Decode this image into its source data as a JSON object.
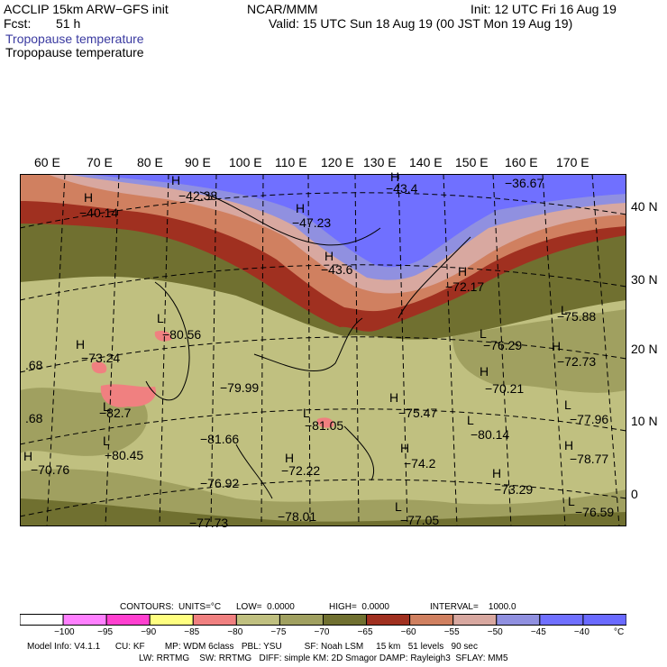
{
  "header": {
    "model": "ACCLIP 15km ARW−GFS init",
    "org": "NCAR/MMM",
    "init": "Init: 12 UTC Fri 16 Aug 19",
    "fcst_label": "Fcst:",
    "fcst_value": "51 h",
    "valid": "Valid: 15 UTC Sun 18 Aug 19 (00 JST Mon 19 Aug 19)",
    "field1": "Tropopause temperature",
    "field2": "Tropopause temperature"
  },
  "lon_labels": [
    "60 E",
    "70 E",
    "80 E",
    "90 E",
    "100 E",
    "110 E",
    "120 E",
    "130 E",
    "140 E",
    "150 E",
    "160 E",
    "170 E"
  ],
  "lat_labels": [
    "40 N",
    "30 N",
    "20 N",
    "10 N",
    "0"
  ],
  "map_labels": [
    {
      "text": "H"
    },
    {
      "text": "−40.14"
    },
    {
      "text": "H"
    },
    {
      "text": "−42.38"
    },
    {
      "text": "H"
    },
    {
      "text": "−47.23"
    },
    {
      "text": "H"
    },
    {
      "text": "−43.4"
    },
    {
      "text": "−36.67"
    },
    {
      "text": "H"
    },
    {
      "text": "−43.6"
    },
    {
      "text": "H"
    },
    {
      "text": "−72.17"
    },
    {
      "text": "L"
    },
    {
      "text": "−75.88"
    },
    {
      "text": "L"
    },
    {
      "text": "−80.56"
    },
    {
      "text": "H"
    },
    {
      "text": "−73.24"
    },
    {
      "text": "L"
    },
    {
      "text": "−76.29"
    },
    {
      "text": "H"
    },
    {
      "text": "−72.73"
    },
    {
      "text": "H"
    },
    {
      "text": "−70.21"
    },
    {
      "text": "−79.99"
    },
    {
      "text": "L"
    },
    {
      "text": "−82.7"
    },
    {
      "text": "H"
    },
    {
      "text": "−75.47"
    },
    {
      "text": "L"
    },
    {
      "text": "−81.05"
    },
    {
      "text": "L"
    },
    {
      "text": "−77.96"
    },
    {
      "text": "L"
    },
    {
      "text": "−80.14"
    },
    {
      "text": "−81.66"
    },
    {
      "text": "L"
    },
    {
      "text": "−80.45"
    },
    {
      "text": "H"
    },
    {
      "text": "−70.76"
    },
    {
      "text": "H"
    },
    {
      "text": "−74.2"
    },
    {
      "text": "H"
    },
    {
      "text": "−78.77"
    },
    {
      "text": "H"
    },
    {
      "text": "−72.22"
    },
    {
      "text": "−76.92"
    },
    {
      "text": "H"
    },
    {
      "text": "−73.29"
    },
    {
      "text": "−78.01"
    },
    {
      "text": "L"
    },
    {
      "text": "−77.05"
    },
    {
      "text": "L"
    },
    {
      "text": "−76.59"
    },
    {
      "text": "−77.73"
    },
    {
      "text": ".68"
    },
    {
      "text": ".68"
    }
  ],
  "contours_line": {
    "contours": "CONTOURS:",
    "units": "UNITS=°C",
    "low": "LOW=  0.0000",
    "high": "HIGH=  0.0000",
    "interval": "INTERVAL=    1000.0"
  },
  "legend": {
    "colors": [
      "#ffffff",
      "#ff80ff",
      "#ff40d0",
      "#ffff80",
      "#f08080",
      "#c0c080",
      "#a0a060",
      "#707030",
      "#a03020",
      "#d08060",
      "#d8a8a0",
      "#9090e0",
      "#7070ff",
      "#6a6aff"
    ],
    "labels": [
      "−100",
      "−95",
      "−90",
      "−85",
      "−80",
      "−75",
      "−70",
      "−65",
      "−60",
      "−55",
      "−50",
      "−45",
      "−40",
      "°C"
    ]
  },
  "footer": {
    "line1": "Model Info: V4.1.1      CU: KF        MP: WDM 6class   PBL: YSU         SF: Noah LSM     15 km   51 levels   90 sec",
    "line2": "LW: RRTMG    SW: RRTMG   DIFF: simple KM: 2D Smagor DAMP: Rayleigh3  SFLAY: MM5"
  }
}
